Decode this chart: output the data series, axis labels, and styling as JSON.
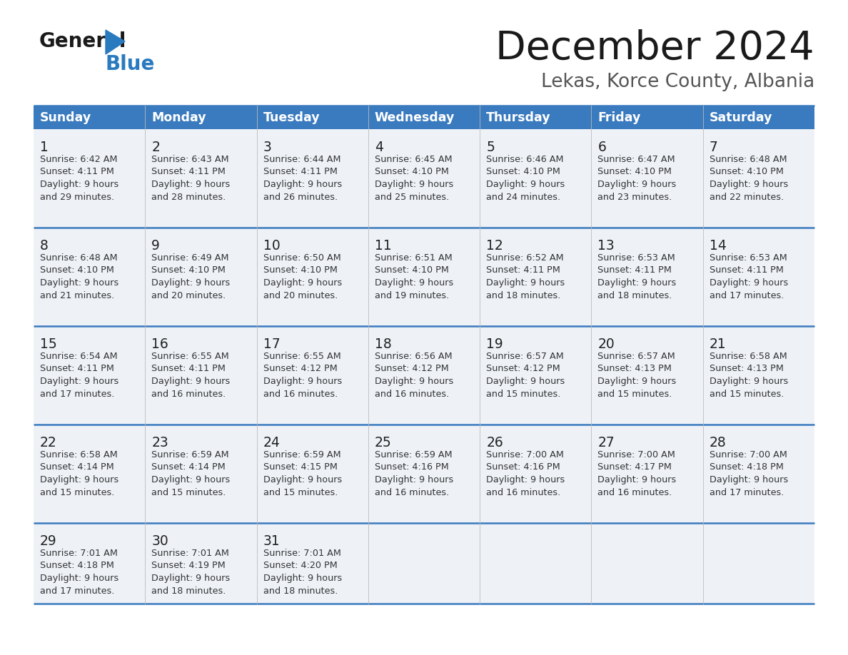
{
  "title": "December 2024",
  "subtitle": "Lekas, Korce County, Albania",
  "header_color": "#3a7abf",
  "header_text_color": "#ffffff",
  "cell_bg_color": "#eef2f7",
  "separator_color": "#3a7abf",
  "text_color": "#333333",
  "day_number_color": "#222222",
  "day_names": [
    "Sunday",
    "Monday",
    "Tuesday",
    "Wednesday",
    "Thursday",
    "Friday",
    "Saturday"
  ],
  "days": [
    {
      "day": 1,
      "col": 0,
      "row": 0,
      "sunrise": "6:42 AM",
      "sunset": "4:11 PM",
      "daylight_hours": 9,
      "daylight_minutes": 29
    },
    {
      "day": 2,
      "col": 1,
      "row": 0,
      "sunrise": "6:43 AM",
      "sunset": "4:11 PM",
      "daylight_hours": 9,
      "daylight_minutes": 28
    },
    {
      "day": 3,
      "col": 2,
      "row": 0,
      "sunrise": "6:44 AM",
      "sunset": "4:11 PM",
      "daylight_hours": 9,
      "daylight_minutes": 26
    },
    {
      "day": 4,
      "col": 3,
      "row": 0,
      "sunrise": "6:45 AM",
      "sunset": "4:10 PM",
      "daylight_hours": 9,
      "daylight_minutes": 25
    },
    {
      "day": 5,
      "col": 4,
      "row": 0,
      "sunrise": "6:46 AM",
      "sunset": "4:10 PM",
      "daylight_hours": 9,
      "daylight_minutes": 24
    },
    {
      "day": 6,
      "col": 5,
      "row": 0,
      "sunrise": "6:47 AM",
      "sunset": "4:10 PM",
      "daylight_hours": 9,
      "daylight_minutes": 23
    },
    {
      "day": 7,
      "col": 6,
      "row": 0,
      "sunrise": "6:48 AM",
      "sunset": "4:10 PM",
      "daylight_hours": 9,
      "daylight_minutes": 22
    },
    {
      "day": 8,
      "col": 0,
      "row": 1,
      "sunrise": "6:48 AM",
      "sunset": "4:10 PM",
      "daylight_hours": 9,
      "daylight_minutes": 21
    },
    {
      "day": 9,
      "col": 1,
      "row": 1,
      "sunrise": "6:49 AM",
      "sunset": "4:10 PM",
      "daylight_hours": 9,
      "daylight_minutes": 20
    },
    {
      "day": 10,
      "col": 2,
      "row": 1,
      "sunrise": "6:50 AM",
      "sunset": "4:10 PM",
      "daylight_hours": 9,
      "daylight_minutes": 20
    },
    {
      "day": 11,
      "col": 3,
      "row": 1,
      "sunrise": "6:51 AM",
      "sunset": "4:10 PM",
      "daylight_hours": 9,
      "daylight_minutes": 19
    },
    {
      "day": 12,
      "col": 4,
      "row": 1,
      "sunrise": "6:52 AM",
      "sunset": "4:11 PM",
      "daylight_hours": 9,
      "daylight_minutes": 18
    },
    {
      "day": 13,
      "col": 5,
      "row": 1,
      "sunrise": "6:53 AM",
      "sunset": "4:11 PM",
      "daylight_hours": 9,
      "daylight_minutes": 18
    },
    {
      "day": 14,
      "col": 6,
      "row": 1,
      "sunrise": "6:53 AM",
      "sunset": "4:11 PM",
      "daylight_hours": 9,
      "daylight_minutes": 17
    },
    {
      "day": 15,
      "col": 0,
      "row": 2,
      "sunrise": "6:54 AM",
      "sunset": "4:11 PM",
      "daylight_hours": 9,
      "daylight_minutes": 17
    },
    {
      "day": 16,
      "col": 1,
      "row": 2,
      "sunrise": "6:55 AM",
      "sunset": "4:11 PM",
      "daylight_hours": 9,
      "daylight_minutes": 16
    },
    {
      "day": 17,
      "col": 2,
      "row": 2,
      "sunrise": "6:55 AM",
      "sunset": "4:12 PM",
      "daylight_hours": 9,
      "daylight_minutes": 16
    },
    {
      "day": 18,
      "col": 3,
      "row": 2,
      "sunrise": "6:56 AM",
      "sunset": "4:12 PM",
      "daylight_hours": 9,
      "daylight_minutes": 16
    },
    {
      "day": 19,
      "col": 4,
      "row": 2,
      "sunrise": "6:57 AM",
      "sunset": "4:12 PM",
      "daylight_hours": 9,
      "daylight_minutes": 15
    },
    {
      "day": 20,
      "col": 5,
      "row": 2,
      "sunrise": "6:57 AM",
      "sunset": "4:13 PM",
      "daylight_hours": 9,
      "daylight_minutes": 15
    },
    {
      "day": 21,
      "col": 6,
      "row": 2,
      "sunrise": "6:58 AM",
      "sunset": "4:13 PM",
      "daylight_hours": 9,
      "daylight_minutes": 15
    },
    {
      "day": 22,
      "col": 0,
      "row": 3,
      "sunrise": "6:58 AM",
      "sunset": "4:14 PM",
      "daylight_hours": 9,
      "daylight_minutes": 15
    },
    {
      "day": 23,
      "col": 1,
      "row": 3,
      "sunrise": "6:59 AM",
      "sunset": "4:14 PM",
      "daylight_hours": 9,
      "daylight_minutes": 15
    },
    {
      "day": 24,
      "col": 2,
      "row": 3,
      "sunrise": "6:59 AM",
      "sunset": "4:15 PM",
      "daylight_hours": 9,
      "daylight_minutes": 15
    },
    {
      "day": 25,
      "col": 3,
      "row": 3,
      "sunrise": "6:59 AM",
      "sunset": "4:16 PM",
      "daylight_hours": 9,
      "daylight_minutes": 16
    },
    {
      "day": 26,
      "col": 4,
      "row": 3,
      "sunrise": "7:00 AM",
      "sunset": "4:16 PM",
      "daylight_hours": 9,
      "daylight_minutes": 16
    },
    {
      "day": 27,
      "col": 5,
      "row": 3,
      "sunrise": "7:00 AM",
      "sunset": "4:17 PM",
      "daylight_hours": 9,
      "daylight_minutes": 16
    },
    {
      "day": 28,
      "col": 6,
      "row": 3,
      "sunrise": "7:00 AM",
      "sunset": "4:18 PM",
      "daylight_hours": 9,
      "daylight_minutes": 17
    },
    {
      "day": 29,
      "col": 0,
      "row": 4,
      "sunrise": "7:01 AM",
      "sunset": "4:18 PM",
      "daylight_hours": 9,
      "daylight_minutes": 17
    },
    {
      "day": 30,
      "col": 1,
      "row": 4,
      "sunrise": "7:01 AM",
      "sunset": "4:19 PM",
      "daylight_hours": 9,
      "daylight_minutes": 18
    },
    {
      "day": 31,
      "col": 2,
      "row": 4,
      "sunrise": "7:01 AM",
      "sunset": "4:20 PM",
      "daylight_hours": 9,
      "daylight_minutes": 18
    }
  ],
  "logo_color": "#2a7abf",
  "fig_width": 11.88,
  "fig_height": 9.18,
  "dpi": 100
}
